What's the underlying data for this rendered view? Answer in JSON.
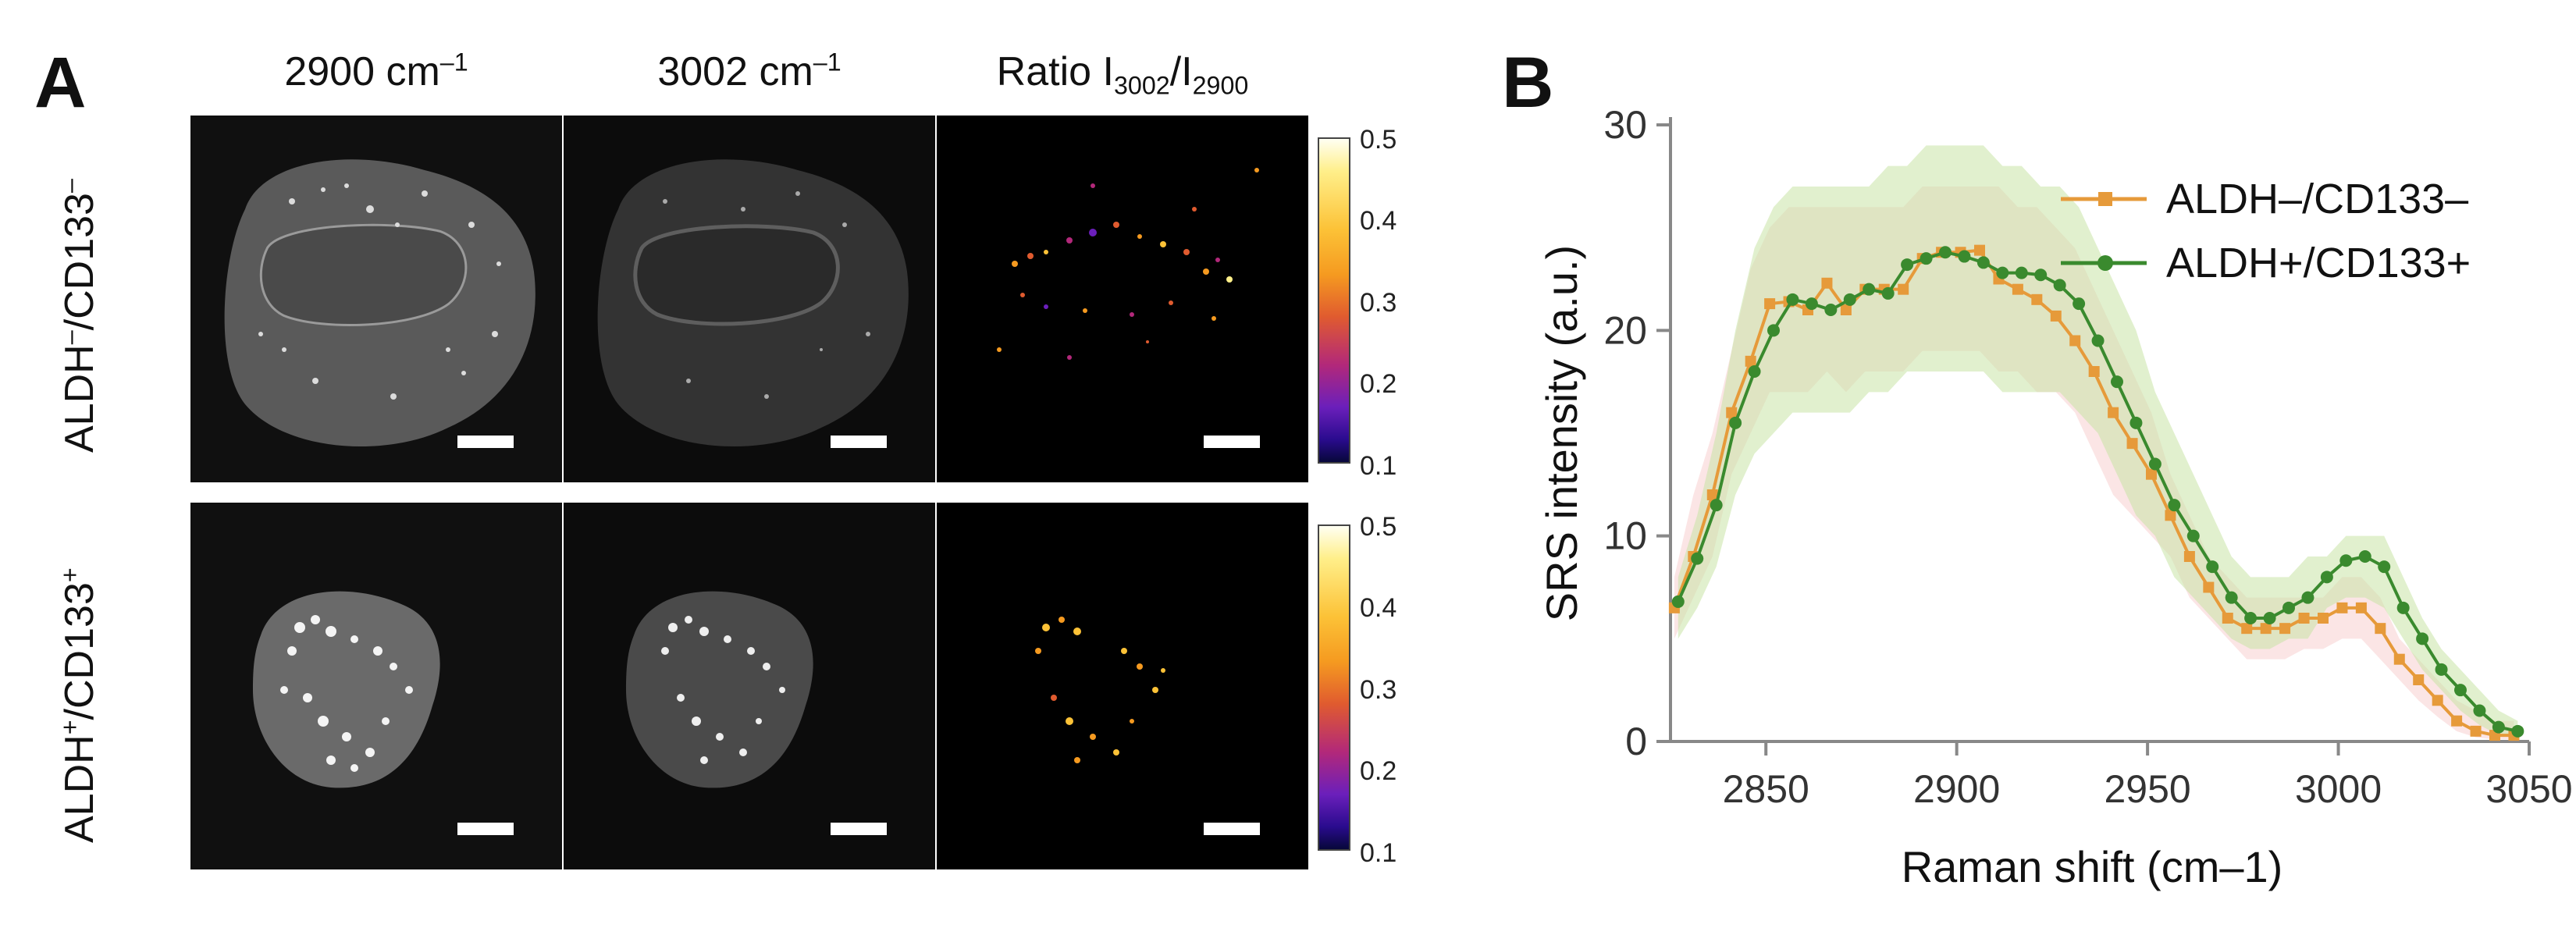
{
  "panel_a": {
    "letter": "A",
    "columns": [
      {
        "main": "2900 cm",
        "sup": "–1"
      },
      {
        "main": "3002 cm",
        "sup": "–1"
      },
      {
        "main": "Ratio I",
        "sub1": "3002",
        "mid": "/I",
        "sub2": "2900"
      }
    ],
    "rows": [
      {
        "pre": "ALDH",
        "sup1": "–",
        "mid": "/CD133",
        "sup2": "–"
      },
      {
        "pre": "ALDH",
        "sup1": "+",
        "mid": "/CD133",
        "sup2": "+"
      }
    ],
    "colorbar_ticks": [
      "0.5",
      "0.4",
      "0.3",
      "0.2",
      "0.1"
    ],
    "colorbar_colors": [
      "#fffff2",
      "#ffef8a",
      "#fcc237",
      "#f59a20",
      "#e05b2f",
      "#b2287a",
      "#6b1fbb",
      "#2a0b8e",
      "#07073a"
    ]
  },
  "panel_b": {
    "letter": "B"
  },
  "chart_data": {
    "type": "line",
    "title": "",
    "xlabel": "Raman shift (cm–1)",
    "ylabel": "SRS intensity (a.u.)",
    "xlim": [
      2825,
      3050
    ],
    "ylim": [
      0,
      30
    ],
    "xticks": [
      2850,
      2900,
      2950,
      3000,
      3050
    ],
    "yticks": [
      0,
      10,
      20,
      30
    ],
    "grid": false,
    "legend_position": "top-right",
    "series": [
      {
        "name": "ALDH–/CD133–",
        "color": "#e69a3a",
        "marker": "square",
        "x": [
          2826,
          2831,
          2836,
          2841,
          2846,
          2851,
          2856,
          2861,
          2866,
          2871,
          2876,
          2881,
          2886,
          2891,
          2896,
          2901,
          2906,
          2911,
          2916,
          2921,
          2926,
          2931,
          2936,
          2941,
          2946,
          2951,
          2956,
          2961,
          2966,
          2971,
          2976,
          2981,
          2986,
          2991,
          2996,
          3001,
          3006,
          3011,
          3016,
          3021,
          3026,
          3031,
          3036,
          3041,
          3046
        ],
        "y": [
          6.5,
          9.0,
          12.0,
          16.0,
          18.5,
          21.3,
          21.4,
          21.0,
          22.3,
          21.0,
          22.0,
          22.0,
          22.0,
          23.5,
          23.8,
          23.8,
          23.9,
          22.5,
          22.0,
          21.5,
          20.7,
          19.5,
          18.0,
          16.0,
          14.5,
          13.0,
          11.0,
          9.0,
          7.5,
          6.0,
          5.5,
          5.5,
          5.5,
          6.0,
          6.0,
          6.5,
          6.5,
          5.5,
          4.0,
          3.0,
          2.0,
          1.0,
          0.5,
          0.3,
          0.3
        ],
        "band_upper": [
          8,
          12,
          15,
          19,
          23,
          25,
          26,
          26,
          26,
          26,
          26,
          26,
          26,
          27,
          27,
          27,
          27,
          27,
          26,
          26,
          25,
          24,
          22,
          20,
          18,
          16,
          13,
          11,
          9,
          8,
          7,
          7,
          7,
          7,
          7,
          8,
          8,
          7,
          5,
          4,
          3,
          2,
          1.5,
          1,
          1
        ],
        "band_lower": [
          5,
          7,
          9,
          13,
          15,
          17,
          17,
          17,
          18,
          17,
          18,
          18,
          18,
          19,
          19,
          19,
          19,
          18,
          18,
          17,
          17,
          16,
          14,
          12,
          11,
          10,
          9,
          7,
          6,
          5,
          4,
          4,
          4,
          4.5,
          4.5,
          5,
          5,
          4,
          3,
          2,
          1.2,
          0.5,
          0.2,
          0.1,
          0.1
        ]
      },
      {
        "name": "ALDH+/CD133+",
        "color": "#3a8a2e",
        "marker": "circle",
        "x": [
          2827,
          2832,
          2837,
          2842,
          2847,
          2852,
          2857,
          2862,
          2867,
          2872,
          2877,
          2882,
          2887,
          2892,
          2897,
          2902,
          2907,
          2912,
          2917,
          2922,
          2927,
          2932,
          2937,
          2942,
          2947,
          2952,
          2957,
          2962,
          2967,
          2972,
          2977,
          2982,
          2987,
          2992,
          2997,
          3002,
          3007,
          3012,
          3017,
          3022,
          3027,
          3032,
          3037,
          3042,
          3047
        ],
        "y": [
          6.8,
          8.9,
          11.5,
          15.5,
          18.0,
          20.0,
          21.5,
          21.3,
          21.0,
          21.5,
          22.0,
          21.8,
          23.2,
          23.5,
          23.8,
          23.6,
          23.3,
          22.8,
          22.8,
          22.7,
          22.2,
          21.3,
          19.5,
          17.5,
          15.5,
          13.5,
          11.5,
          10.0,
          8.5,
          7.0,
          6.0,
          6.0,
          6.5,
          7.0,
          8.0,
          8.8,
          9.0,
          8.5,
          6.5,
          5.0,
          3.5,
          2.5,
          1.5,
          0.7,
          0.5
        ],
        "band_upper": [
          8,
          11,
          15,
          20,
          24,
          26,
          27,
          27,
          27,
          27,
          27,
          28,
          28,
          29,
          29,
          29,
          29,
          28,
          28,
          27,
          27,
          26,
          24,
          22,
          20,
          17,
          15,
          13,
          11,
          9,
          8,
          8,
          8,
          9,
          9,
          10,
          10,
          10,
          8,
          6,
          4.5,
          3.5,
          2.5,
          1.5,
          1
        ],
        "band_lower": [
          5,
          6.5,
          8.5,
          12,
          14,
          15,
          16,
          16,
          16,
          16,
          17,
          17,
          18,
          18,
          18,
          18,
          18,
          17,
          17,
          17,
          17,
          16,
          15,
          13,
          11,
          10,
          8,
          7,
          6,
          5,
          4.5,
          4.5,
          5,
          5,
          6.5,
          7,
          7,
          6.5,
          5,
          3.5,
          2.5,
          1.5,
          0.8,
          0.3,
          0.2
        ]
      }
    ]
  }
}
